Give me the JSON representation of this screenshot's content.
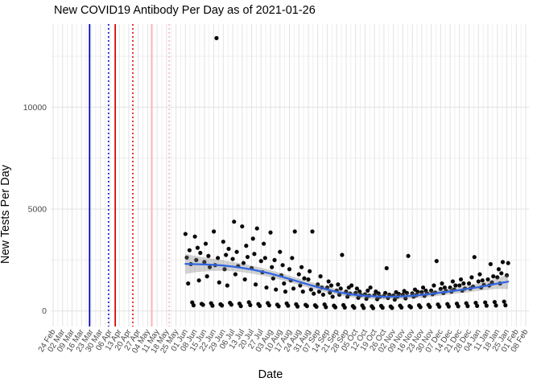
{
  "title": "New COVID19 Antibody Per Day as of 2021-01-26",
  "axes": {
    "x": {
      "label": "Date",
      "tick_labels": [
        "24 Feb",
        "02 Mar",
        "09 Mar",
        "16 Mar",
        "23 Mar",
        "30 Mar",
        "06 Apr",
        "13 Apr",
        "20 Apr",
        "27 Apr",
        "04 May",
        "11 May",
        "18 May",
        "25 May",
        "01 Jun",
        "08 Jun",
        "15 Jun",
        "22 Jun",
        "29 Jun",
        "06 Jul",
        "13 Jul",
        "20 Jul",
        "27 Jul",
        "03 Aug",
        "10 Aug",
        "17 Aug",
        "24 Aug",
        "31 Aug",
        "07 Sep",
        "14 Sep",
        "21 Sep",
        "28 Sep",
        "05 Oct",
        "12 Oct",
        "19 Oct",
        "26 Oct",
        "02 Nov",
        "09 Nov",
        "16 Nov",
        "23 Nov",
        "30 Nov",
        "07 Dec",
        "14 Dec",
        "21 Dec",
        "28 Dec",
        "04 Jan",
        "11 Jan",
        "18 Jan",
        "25 Jan",
        "01 Feb",
        "08 Feb"
      ],
      "tick_interval_days": 7,
      "first_tick_date": "2020-02-24"
    },
    "y": {
      "label": "New Tests Per Day",
      "ticks": [
        {
          "value": 0,
          "label": "0"
        },
        {
          "value": 5000,
          "label": "5000"
        },
        {
          "value": 10000,
          "label": "10000"
        }
      ],
      "minor_ticks": [
        2500,
        7500,
        12500
      ]
    }
  },
  "colors": {
    "background": "#ffffff",
    "grid_major": "#e2e2e2",
    "grid_minor": "#efefef",
    "point": "#0a0a0a",
    "smooth_line": "#3366e0",
    "ribbon": "rgba(125,125,125,0.35)",
    "tick_label": "#4a4a4a",
    "vline_blue": "#0000c4",
    "vline_red": "#de0000",
    "vline_pink": "#ffb3bd"
  },
  "chart_data": {
    "type": "scatter",
    "title": "New COVID19 Antibody Per Day as of 2021-01-26",
    "xlabel": "Date",
    "ylabel": "New Tests Per Day",
    "x_unit": "days since 2020-02-24 (weekly ticks 24 Feb 2020 - 08 Feb 2021)",
    "ylim": [
      0,
      13500
    ],
    "grid": true,
    "legend": "none",
    "outlier": {
      "day": 121,
      "approx_date": "24 Jun",
      "value": 13390
    },
    "vlines": [
      {
        "day": 27,
        "approx_date": "22 Mar",
        "color": "#0000c4",
        "style": "solid"
      },
      {
        "day": 41,
        "approx_date": "05 Apr",
        "color": "#0000c4",
        "style": "dotted"
      },
      {
        "day": 46,
        "approx_date": "10 Apr",
        "color": "#de0000",
        "style": "solid"
      },
      {
        "day": 59,
        "approx_date": "23 Apr",
        "color": "#de0000",
        "style": "dotted"
      },
      {
        "day": 73,
        "approx_date": "07 May",
        "color": "#ffb3bd",
        "style": "solid"
      },
      {
        "day": 86,
        "approx_date": "20 May",
        "color": "#ffb3bd",
        "style": "dotted"
      }
    ],
    "trend": {
      "name": "loess smooth with confidence ribbon",
      "color": "#3366e0",
      "points_format": "[day, value, ribbon_half_width]",
      "points": [
        [
          98,
          2310,
          490
        ],
        [
          105,
          2298,
          400
        ],
        [
          112,
          2283,
          340
        ],
        [
          119,
          2262,
          295
        ],
        [
          126,
          2230,
          260
        ],
        [
          133,
          2180,
          230
        ],
        [
          140,
          2115,
          210
        ],
        [
          147,
          2035,
          195
        ],
        [
          154,
          1940,
          185
        ],
        [
          161,
          1830,
          175
        ],
        [
          168,
          1705,
          168
        ],
        [
          175,
          1570,
          162
        ],
        [
          182,
          1435,
          158
        ],
        [
          189,
          1300,
          154
        ],
        [
          196,
          1170,
          150
        ],
        [
          203,
          1048,
          147
        ],
        [
          210,
          940,
          144
        ],
        [
          217,
          852,
          142
        ],
        [
          224,
          786,
          140
        ],
        [
          231,
          740,
          138
        ],
        [
          238,
          714,
          136
        ],
        [
          245,
          700,
          135
        ],
        [
          252,
          702,
          135
        ],
        [
          259,
          718,
          136
        ],
        [
          266,
          746,
          138
        ],
        [
          273,
          788,
          141
        ],
        [
          280,
          842,
          144
        ],
        [
          287,
          902,
          148
        ],
        [
          294,
          964,
          152
        ],
        [
          301,
          1028,
          158
        ],
        [
          308,
          1096,
          168
        ],
        [
          315,
          1170,
          185
        ],
        [
          322,
          1252,
          215
        ],
        [
          329,
          1345,
          265
        ],
        [
          337,
          1435,
          360
        ]
      ]
    },
    "points_format": "[day, new_tests]",
    "points": [
      [
        98,
        3780
      ],
      [
        99,
        2620
      ],
      [
        100,
        1350
      ],
      [
        101,
        2980
      ],
      [
        102,
        2300
      ],
      [
        103,
        420
      ],
      [
        104,
        280
      ],
      [
        105,
        3650
      ],
      [
        106,
        2500
      ],
      [
        107,
        3100
      ],
      [
        108,
        1500
      ],
      [
        109,
        2850
      ],
      [
        110,
        350
      ],
      [
        111,
        300
      ],
      [
        112,
        2400
      ],
      [
        113,
        3300
      ],
      [
        114,
        1700
      ],
      [
        115,
        2700
      ],
      [
        116,
        2150
      ],
      [
        117,
        380
      ],
      [
        118,
        260
      ],
      [
        119,
        3900
      ],
      [
        120,
        2250
      ],
      [
        121,
        13390
      ],
      [
        122,
        2600
      ],
      [
        123,
        1400
      ],
      [
        124,
        330
      ],
      [
        125,
        270
      ],
      [
        126,
        3400
      ],
      [
        127,
        2050
      ],
      [
        128,
        2750
      ],
      [
        129,
        1250
      ],
      [
        130,
        3050
      ],
      [
        131,
        400
      ],
      [
        132,
        310
      ],
      [
        133,
        2550
      ],
      [
        134,
        4380
      ],
      [
        135,
        1800
      ],
      [
        136,
        2900
      ],
      [
        137,
        2200
      ],
      [
        138,
        360
      ],
      [
        139,
        240
      ],
      [
        140,
        4150
      ],
      [
        141,
        2350
      ],
      [
        142,
        1550
      ],
      [
        143,
        3200
      ],
      [
        144,
        2650
      ],
      [
        145,
        430
      ],
      [
        146,
        290
      ],
      [
        147,
        2100
      ],
      [
        148,
        3550
      ],
      [
        149,
        2800
      ],
      [
        150,
        1300
      ],
      [
        151,
        4050
      ],
      [
        152,
        340
      ],
      [
        153,
        250
      ],
      [
        154,
        2450
      ],
      [
        155,
        1900
      ],
      [
        156,
        3300
      ],
      [
        157,
        2600
      ],
      [
        158,
        1150
      ],
      [
        159,
        390
      ],
      [
        160,
        280
      ],
      [
        161,
        3850
      ],
      [
        162,
        2150
      ],
      [
        163,
        1600
      ],
      [
        164,
        2500
      ],
      [
        165,
        1050
      ],
      [
        166,
        310
      ],
      [
        167,
        230
      ],
      [
        168,
        2900
      ],
      [
        169,
        1750
      ],
      [
        170,
        2250
      ],
      [
        171,
        1350
      ],
      [
        172,
        950
      ],
      [
        173,
        370
      ],
      [
        174,
        260
      ],
      [
        175,
        2050
      ],
      [
        176,
        1500
      ],
      [
        177,
        2600
      ],
      [
        178,
        1100
      ],
      [
        179,
        3900
      ],
      [
        180,
        330
      ],
      [
        181,
        220
      ],
      [
        182,
        1800
      ],
      [
        183,
        1250
      ],
      [
        184,
        2150
      ],
      [
        185,
        950
      ],
      [
        186,
        1600
      ],
      [
        187,
        300
      ],
      [
        188,
        240
      ],
      [
        189,
        1550
      ],
      [
        190,
        1950
      ],
      [
        191,
        1050
      ],
      [
        192,
        3900
      ],
      [
        193,
        850
      ],
      [
        194,
        280
      ],
      [
        195,
        210
      ],
      [
        196,
        1300
      ],
      [
        197,
        950
      ],
      [
        198,
        1700
      ],
      [
        199,
        1150
      ],
      [
        200,
        800
      ],
      [
        201,
        320
      ],
      [
        202,
        190
      ],
      [
        203,
        1150
      ],
      [
        204,
        1450
      ],
      [
        205,
        900
      ],
      [
        206,
        1250
      ],
      [
        207,
        700
      ],
      [
        208,
        260
      ],
      [
        209,
        180
      ],
      [
        210,
        1000
      ],
      [
        211,
        1300
      ],
      [
        212,
        800
      ],
      [
        213,
        1100
      ],
      [
        214,
        2750
      ],
      [
        215,
        290
      ],
      [
        216,
        170
      ],
      [
        217,
        950
      ],
      [
        218,
        700
      ],
      [
        219,
        1150
      ],
      [
        220,
        850
      ],
      [
        221,
        1250
      ],
      [
        222,
        240
      ],
      [
        223,
        160
      ],
      [
        224,
        880
      ],
      [
        225,
        1100
      ],
      [
        226,
        650
      ],
      [
        227,
        950
      ],
      [
        228,
        780
      ],
      [
        229,
        270
      ],
      [
        230,
        150
      ],
      [
        231,
        820
      ],
      [
        232,
        600
      ],
      [
        233,
        1000
      ],
      [
        234,
        750
      ],
      [
        235,
        1150
      ],
      [
        236,
        230
      ],
      [
        237,
        140
      ],
      [
        238,
        780
      ],
      [
        239,
        950
      ],
      [
        240,
        580
      ],
      [
        241,
        860
      ],
      [
        242,
        700
      ],
      [
        243,
        250
      ],
      [
        244,
        160
      ],
      [
        245,
        740
      ],
      [
        246,
        880
      ],
      [
        247,
        2100
      ],
      [
        248,
        640
      ],
      [
        249,
        800
      ],
      [
        250,
        220
      ],
      [
        251,
        150
      ],
      [
        252,
        760
      ],
      [
        253,
        560
      ],
      [
        254,
        920
      ],
      [
        255,
        700
      ],
      [
        256,
        840
      ],
      [
        257,
        260
      ],
      [
        258,
        170
      ],
      [
        259,
        800
      ],
      [
        260,
        980
      ],
      [
        261,
        620
      ],
      [
        262,
        880
      ],
      [
        263,
        2700
      ],
      [
        264,
        240
      ],
      [
        265,
        180
      ],
      [
        266,
        860
      ],
      [
        267,
        700
      ],
      [
        268,
        1050
      ],
      [
        269,
        780
      ],
      [
        270,
        940
      ],
      [
        271,
        280
      ],
      [
        272,
        190
      ],
      [
        273,
        920
      ],
      [
        274,
        1150
      ],
      [
        275,
        740
      ],
      [
        276,
        1000
      ],
      [
        277,
        860
      ],
      [
        278,
        300
      ],
      [
        279,
        200
      ],
      [
        280,
        1000
      ],
      [
        281,
        820
      ],
      [
        282,
        1250
      ],
      [
        283,
        900
      ],
      [
        284,
        2450
      ],
      [
        285,
        320
      ],
      [
        286,
        210
      ],
      [
        287,
        1080
      ],
      [
        288,
        1350
      ],
      [
        289,
        880
      ],
      [
        290,
        1150
      ],
      [
        291,
        980
      ],
      [
        292,
        340
      ],
      [
        293,
        220
      ],
      [
        294,
        1150
      ],
      [
        295,
        950
      ],
      [
        296,
        1450
      ],
      [
        297,
        1050
      ],
      [
        298,
        1250
      ],
      [
        299,
        360
      ],
      [
        300,
        230
      ],
      [
        301,
        1250
      ],
      [
        302,
        1550
      ],
      [
        303,
        1000
      ],
      [
        304,
        1350
      ],
      [
        305,
        1100
      ],
      [
        306,
        380
      ],
      [
        307,
        240
      ],
      [
        308,
        1350
      ],
      [
        309,
        1100
      ],
      [
        310,
        1650
      ],
      [
        311,
        1200
      ],
      [
        312,
        2644
      ],
      [
        313,
        400
      ],
      [
        314,
        250
      ],
      [
        315,
        1450
      ],
      [
        316,
        1800
      ],
      [
        317,
        1150
      ],
      [
        318,
        1500
      ],
      [
        319,
        1280
      ],
      [
        320,
        420
      ],
      [
        321,
        260
      ],
      [
        322,
        1550
      ],
      [
        323,
        1250
      ],
      [
        324,
        2300
      ],
      [
        325,
        1400
      ],
      [
        326,
        1700
      ],
      [
        327,
        440
      ],
      [
        328,
        270
      ],
      [
        329,
        1650
      ],
      [
        330,
        2050
      ],
      [
        331,
        1350
      ],
      [
        332,
        1850
      ],
      [
        333,
        2400
      ],
      [
        334,
        460
      ],
      [
        335,
        280
      ],
      [
        336,
        1750
      ],
      [
        337,
        2350
      ]
    ]
  }
}
